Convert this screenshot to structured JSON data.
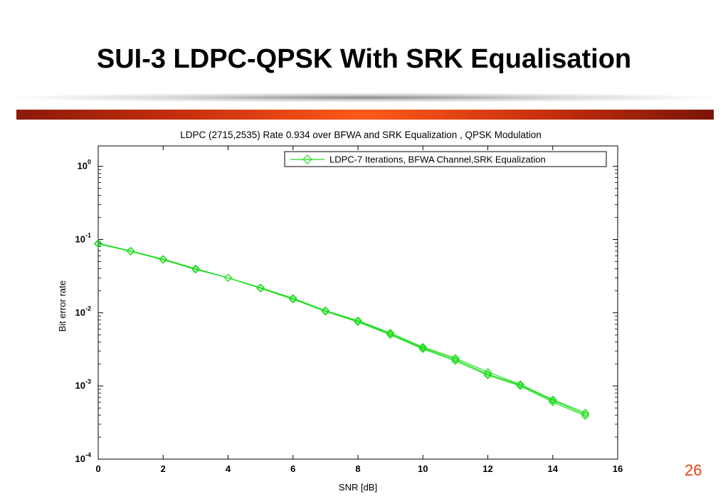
{
  "slide": {
    "title": "SUI-3 LDPC-QPSK With SRK Equalisation",
    "page_number": "26"
  },
  "colors": {
    "series": "#22dd22",
    "accent_bar": "#c9300e",
    "page_number": "#e8400c"
  },
  "chart_data": {
    "type": "line",
    "title": "LDPC (2715,2535) Rate 0.934 over BFWA and SRK Equalization , QPSK Modulation",
    "xlabel": "SNR [dB]",
    "ylabel": "Bit error rate",
    "xlim": [
      0,
      16
    ],
    "ylim": [
      0.0001,
      1.9
    ],
    "yscale": "log",
    "xticks": [
      0,
      2,
      4,
      6,
      8,
      10,
      12,
      14,
      16
    ],
    "yticks": [
      {
        "value": 1,
        "base": "10",
        "exp": "0"
      },
      {
        "value": 0.1,
        "base": "10",
        "exp": "-1"
      },
      {
        "value": 0.01,
        "base": "10",
        "exp": "-2"
      },
      {
        "value": 0.001,
        "base": "10",
        "exp": "-3"
      },
      {
        "value": 0.0001,
        "base": "10",
        "exp": "-4"
      }
    ],
    "legend": {
      "entries": [
        "LDPC-7 Iterations, BFWA Channel,SRK Equalization"
      ],
      "position": "top-right"
    },
    "grid": false,
    "marker": "diamond",
    "series": [
      {
        "name": "LDPC-7 Iterations, BFWA Channel,SRK Equalization",
        "x": [
          0,
          1,
          2,
          3,
          4,
          5,
          6,
          7,
          8,
          9,
          10,
          11,
          12,
          13,
          14,
          15
        ],
        "y": [
          0.088,
          0.069,
          0.053,
          0.04,
          0.03,
          0.022,
          0.0158,
          0.0107,
          0.0078,
          0.0053,
          0.0034,
          0.0024,
          0.00155,
          0.00105,
          0.00065,
          0.00043
        ]
      },
      {
        "x": [
          0,
          1,
          2,
          3,
          4,
          5,
          6,
          7,
          8,
          9,
          10,
          11,
          12,
          13,
          14,
          15
        ],
        "y": [
          0.087,
          0.069,
          0.053,
          0.039,
          0.03,
          0.0215,
          0.0153,
          0.0104,
          0.0075,
          0.005,
          0.0032,
          0.0022,
          0.0014,
          0.001,
          0.0006,
          0.00039
        ]
      },
      {
        "x": [
          0,
          1,
          2,
          3,
          4,
          5,
          6,
          7,
          8,
          9,
          10,
          11,
          12,
          13,
          14,
          15
        ],
        "y": [
          0.089,
          0.07,
          0.054,
          0.04,
          0.03,
          0.022,
          0.0155,
          0.0105,
          0.0077,
          0.0051,
          0.0033,
          0.0023,
          0.00145,
          0.00103,
          0.00063,
          0.00041
        ]
      }
    ]
  }
}
